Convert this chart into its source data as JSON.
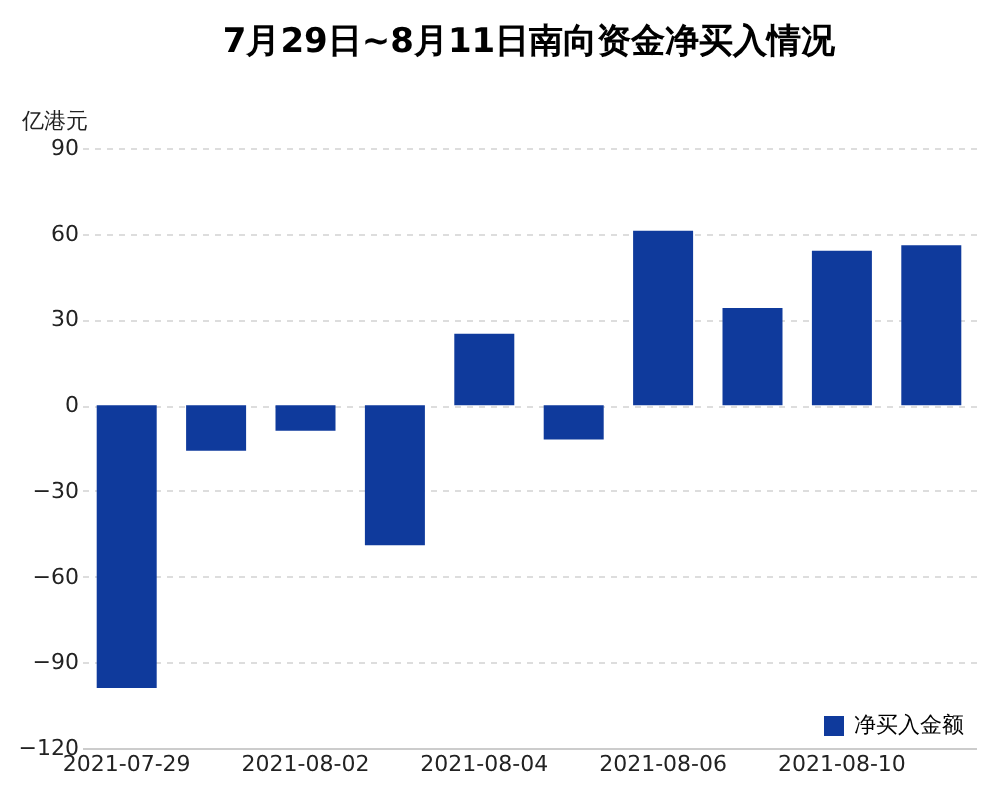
{
  "chart_data": {
    "type": "bar",
    "title": "7月29日~8月11日南向资金净买入情况",
    "ylabel": "亿港元",
    "categories": [
      "2021-07-29",
      null,
      "2021-08-02",
      null,
      "2021-08-04",
      null,
      "2021-08-06",
      null,
      "2021-08-10",
      null
    ],
    "series": [
      {
        "name": "净买入金额",
        "color": "#0f3a9c",
        "values": [
          -99,
          -16,
          -9,
          -49,
          25,
          -12,
          61,
          34,
          54,
          56
        ]
      }
    ],
    "ylim": [
      -120,
      90
    ],
    "yticks": [
      -120,
      -90,
      -60,
      -30,
      0,
      30,
      60,
      90
    ],
    "grid": "y",
    "legend": "bottom right"
  }
}
